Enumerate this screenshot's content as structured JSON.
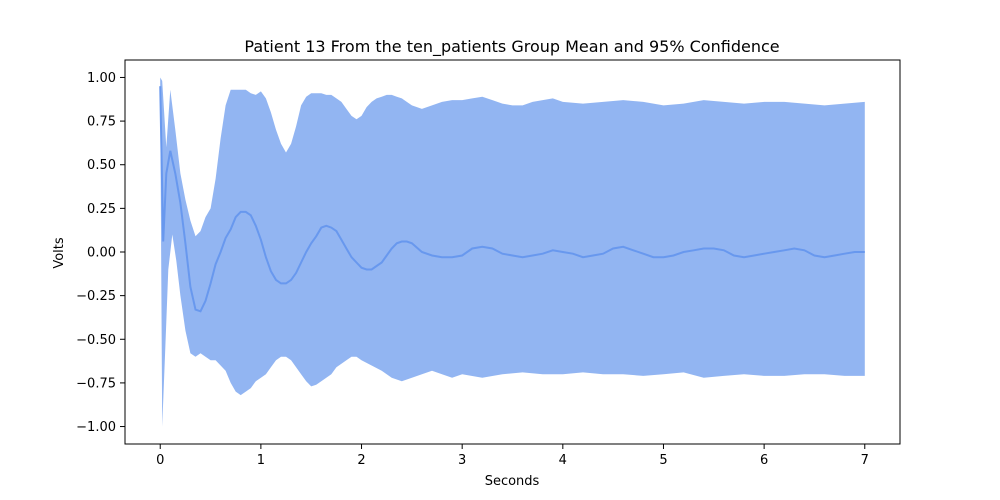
{
  "chart_data": {
    "type": "area",
    "title": "Patient 13 From the ten_patients Group Mean and 95% Confidence",
    "xlabel": "Seconds",
    "ylabel": "Volts",
    "xlim": [
      -0.35,
      7.35
    ],
    "ylim": [
      -1.1,
      1.1
    ],
    "x_ticks": [
      0,
      1,
      2,
      3,
      4,
      5,
      6,
      7
    ],
    "y_ticks": [
      -1.0,
      -0.75,
      -0.5,
      -0.25,
      0.0,
      0.25,
      0.5,
      0.75,
      1.0
    ],
    "x_tick_labels": [
      "0",
      "1",
      "2",
      "3",
      "4",
      "5",
      "6",
      "7"
    ],
    "y_tick_labels": [
      "−1.00",
      "−0.75",
      "−0.50",
      "−0.25",
      "0.00",
      "0.25",
      "0.50",
      "0.75",
      "1.00"
    ],
    "grid": false,
    "colors": {
      "band": "#6495ED",
      "line": "#6495ED"
    },
    "series": [
      {
        "kind": "mean",
        "x": [
          0,
          0.03,
          0.06,
          0.1,
          0.15,
          0.2,
          0.25,
          0.3,
          0.35,
          0.4,
          0.45,
          0.5,
          0.55,
          0.6,
          0.65,
          0.7,
          0.75,
          0.8,
          0.85,
          0.9,
          0.95,
          1.0,
          1.05,
          1.1,
          1.15,
          1.2,
          1.25,
          1.3,
          1.35,
          1.4,
          1.45,
          1.5,
          1.55,
          1.6,
          1.65,
          1.7,
          1.75,
          1.8,
          1.85,
          1.9,
          1.95,
          2.0,
          2.05,
          2.1,
          2.15,
          2.2,
          2.25,
          2.3,
          2.35,
          2.4,
          2.45,
          2.5,
          2.6,
          2.7,
          2.8,
          2.9,
          3.0,
          3.1,
          3.2,
          3.3,
          3.4,
          3.5,
          3.6,
          3.7,
          3.8,
          3.9,
          4.0,
          4.1,
          4.2,
          4.3,
          4.4,
          4.5,
          4.6,
          4.7,
          4.8,
          4.9,
          5.0,
          5.1,
          5.2,
          5.3,
          5.4,
          5.5,
          5.6,
          5.7,
          5.8,
          5.9,
          6.0,
          6.1,
          6.2,
          6.3,
          6.4,
          6.5,
          6.6,
          6.7,
          6.8,
          6.9,
          7.0
        ],
        "y": [
          0.95,
          0.06,
          0.45,
          0.58,
          0.45,
          0.28,
          0.05,
          -0.2,
          -0.33,
          -0.34,
          -0.28,
          -0.18,
          -0.07,
          0.0,
          0.08,
          0.13,
          0.2,
          0.23,
          0.23,
          0.21,
          0.15,
          0.07,
          -0.03,
          -0.11,
          -0.16,
          -0.18,
          -0.18,
          -0.16,
          -0.12,
          -0.06,
          0.0,
          0.05,
          0.09,
          0.14,
          0.15,
          0.14,
          0.12,
          0.07,
          0.02,
          -0.03,
          -0.06,
          -0.09,
          -0.1,
          -0.1,
          -0.08,
          -0.06,
          -0.02,
          0.02,
          0.05,
          0.06,
          0.06,
          0.05,
          0.0,
          -0.02,
          -0.03,
          -0.03,
          -0.02,
          0.02,
          0.03,
          0.02,
          -0.01,
          -0.02,
          -0.03,
          -0.02,
          -0.01,
          0.01,
          0.0,
          -0.01,
          -0.03,
          -0.02,
          -0.01,
          0.02,
          0.03,
          0.01,
          -0.01,
          -0.03,
          -0.03,
          -0.02,
          0.0,
          0.01,
          0.02,
          0.02,
          0.01,
          -0.02,
          -0.03,
          -0.02,
          -0.01,
          0.0,
          0.01,
          0.02,
          0.01,
          -0.02,
          -0.03,
          -0.02,
          -0.01,
          0.0,
          0.0
        ]
      },
      {
        "kind": "upper-ci",
        "x": [
          0,
          0.02,
          0.06,
          0.1,
          0.15,
          0.2,
          0.25,
          0.3,
          0.35,
          0.4,
          0.45,
          0.5,
          0.55,
          0.6,
          0.65,
          0.7,
          0.75,
          0.8,
          0.85,
          0.9,
          0.95,
          1.0,
          1.05,
          1.1,
          1.15,
          1.2,
          1.25,
          1.3,
          1.35,
          1.4,
          1.45,
          1.5,
          1.55,
          1.6,
          1.65,
          1.7,
          1.75,
          1.8,
          1.85,
          1.9,
          1.95,
          2.0,
          2.05,
          2.1,
          2.15,
          2.2,
          2.25,
          2.3,
          2.35,
          2.4,
          2.45,
          2.5,
          2.6,
          2.7,
          2.8,
          2.9,
          3.0,
          3.1,
          3.2,
          3.3,
          3.4,
          3.5,
          3.6,
          3.7,
          3.8,
          3.9,
          4.0,
          4.2,
          4.4,
          4.6,
          4.8,
          5.0,
          5.2,
          5.4,
          5.6,
          5.8,
          6.0,
          6.2,
          6.4,
          6.6,
          6.8,
          7.0
        ],
        "y": [
          1.0,
          0.98,
          0.6,
          0.93,
          0.7,
          0.45,
          0.3,
          0.18,
          0.09,
          0.12,
          0.2,
          0.25,
          0.42,
          0.65,
          0.84,
          0.93,
          0.93,
          0.93,
          0.93,
          0.91,
          0.9,
          0.92,
          0.88,
          0.8,
          0.7,
          0.62,
          0.57,
          0.62,
          0.72,
          0.84,
          0.89,
          0.91,
          0.91,
          0.91,
          0.9,
          0.9,
          0.88,
          0.86,
          0.82,
          0.78,
          0.76,
          0.78,
          0.83,
          0.86,
          0.88,
          0.89,
          0.9,
          0.9,
          0.89,
          0.88,
          0.86,
          0.84,
          0.82,
          0.84,
          0.86,
          0.87,
          0.87,
          0.88,
          0.89,
          0.87,
          0.85,
          0.84,
          0.84,
          0.86,
          0.87,
          0.88,
          0.86,
          0.85,
          0.86,
          0.87,
          0.86,
          0.84,
          0.85,
          0.87,
          0.86,
          0.85,
          0.86,
          0.86,
          0.85,
          0.84,
          0.85,
          0.86
        ]
      },
      {
        "kind": "lower-ci",
        "x": [
          0,
          0.02,
          0.05,
          0.08,
          0.12,
          0.16,
          0.2,
          0.25,
          0.3,
          0.35,
          0.4,
          0.45,
          0.5,
          0.55,
          0.6,
          0.65,
          0.7,
          0.75,
          0.8,
          0.85,
          0.9,
          0.95,
          1.0,
          1.05,
          1.1,
          1.15,
          1.2,
          1.25,
          1.3,
          1.35,
          1.4,
          1.45,
          1.5,
          1.55,
          1.6,
          1.65,
          1.7,
          1.75,
          1.8,
          1.85,
          1.9,
          1.95,
          2.0,
          2.1,
          2.2,
          2.3,
          2.4,
          2.5,
          2.6,
          2.7,
          2.8,
          2.9,
          3.0,
          3.2,
          3.4,
          3.6,
          3.8,
          4.0,
          4.2,
          4.4,
          4.6,
          4.8,
          5.0,
          5.2,
          5.4,
          5.6,
          5.8,
          6.0,
          6.2,
          6.4,
          6.6,
          6.8,
          7.0
        ],
        "y": [
          0.9,
          -1.0,
          -0.55,
          -0.1,
          0.1,
          -0.05,
          -0.25,
          -0.45,
          -0.58,
          -0.6,
          -0.58,
          -0.6,
          -0.62,
          -0.62,
          -0.65,
          -0.68,
          -0.75,
          -0.8,
          -0.82,
          -0.8,
          -0.78,
          -0.74,
          -0.72,
          -0.7,
          -0.66,
          -0.62,
          -0.6,
          -0.6,
          -0.62,
          -0.66,
          -0.7,
          -0.74,
          -0.77,
          -0.76,
          -0.74,
          -0.72,
          -0.7,
          -0.66,
          -0.64,
          -0.62,
          -0.6,
          -0.6,
          -0.62,
          -0.65,
          -0.68,
          -0.72,
          -0.74,
          -0.72,
          -0.7,
          -0.68,
          -0.7,
          -0.72,
          -0.7,
          -0.72,
          -0.7,
          -0.69,
          -0.7,
          -0.7,
          -0.69,
          -0.7,
          -0.7,
          -0.71,
          -0.7,
          -0.69,
          -0.72,
          -0.71,
          -0.7,
          -0.71,
          -0.71,
          -0.7,
          -0.7,
          -0.71,
          -0.71
        ]
      }
    ]
  }
}
